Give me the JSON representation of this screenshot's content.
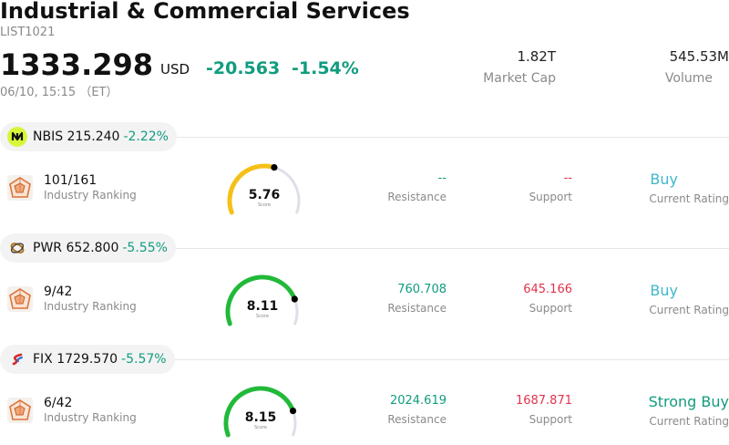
{
  "header": {
    "title": "Industrial & Commercial Services",
    "code": "LIST1021",
    "price": "1333.298",
    "currency": "USD",
    "change": "-20.563",
    "change_pct": "-1.54%",
    "datetime": "06/10, 15:15 （ET）",
    "market_cap_value": "1.82T",
    "market_cap_label": "Market Cap",
    "volume_value": "545.53M",
    "volume_label": "Volume"
  },
  "colors": {
    "positive_green": "#109c7f",
    "negative_red": "#e0334c",
    "rating_teal": "#3fb8c8",
    "gauge_yellow": "#f5c018",
    "gauge_green": "#22b93a",
    "gauge_track": "#dfdfe8"
  },
  "stocks": [
    {
      "symbol": "NBIS",
      "price": "215.240",
      "change_pct": "-2.22%",
      "logo_icon": "nebius-logo-icon",
      "rank": "101/161",
      "rank_label": "Industry Ranking",
      "score": "5.76",
      "score_label": "Score",
      "score_fraction": 0.576,
      "resistance": "--",
      "resistance_label": "Resistance",
      "support": "--",
      "support_label": "Support",
      "rating": "Buy",
      "rating_label": "Current Rating"
    },
    {
      "symbol": "PWR",
      "price": "652.800",
      "change_pct": "-5.55%",
      "logo_icon": "quanta-logo-icon",
      "rank": "9/42",
      "rank_label": "Industry Ranking",
      "score": "8.11",
      "score_label": "Score",
      "score_fraction": 0.811,
      "resistance": "760.708",
      "resistance_label": "Resistance",
      "support": "645.166",
      "support_label": "Support",
      "rating": "Buy",
      "rating_label": "Current Rating"
    },
    {
      "symbol": "FIX",
      "price": "1729.570",
      "change_pct": "-5.57%",
      "logo_icon": "comfort-systems-logo-icon",
      "rank": "6/42",
      "rank_label": "Industry Ranking",
      "score": "8.15",
      "score_label": "Score",
      "score_fraction": 0.815,
      "resistance": "2024.619",
      "resistance_label": "Resistance",
      "support": "1687.871",
      "support_label": "Support",
      "rating": "Strong Buy",
      "rating_label": "Current Rating"
    }
  ]
}
